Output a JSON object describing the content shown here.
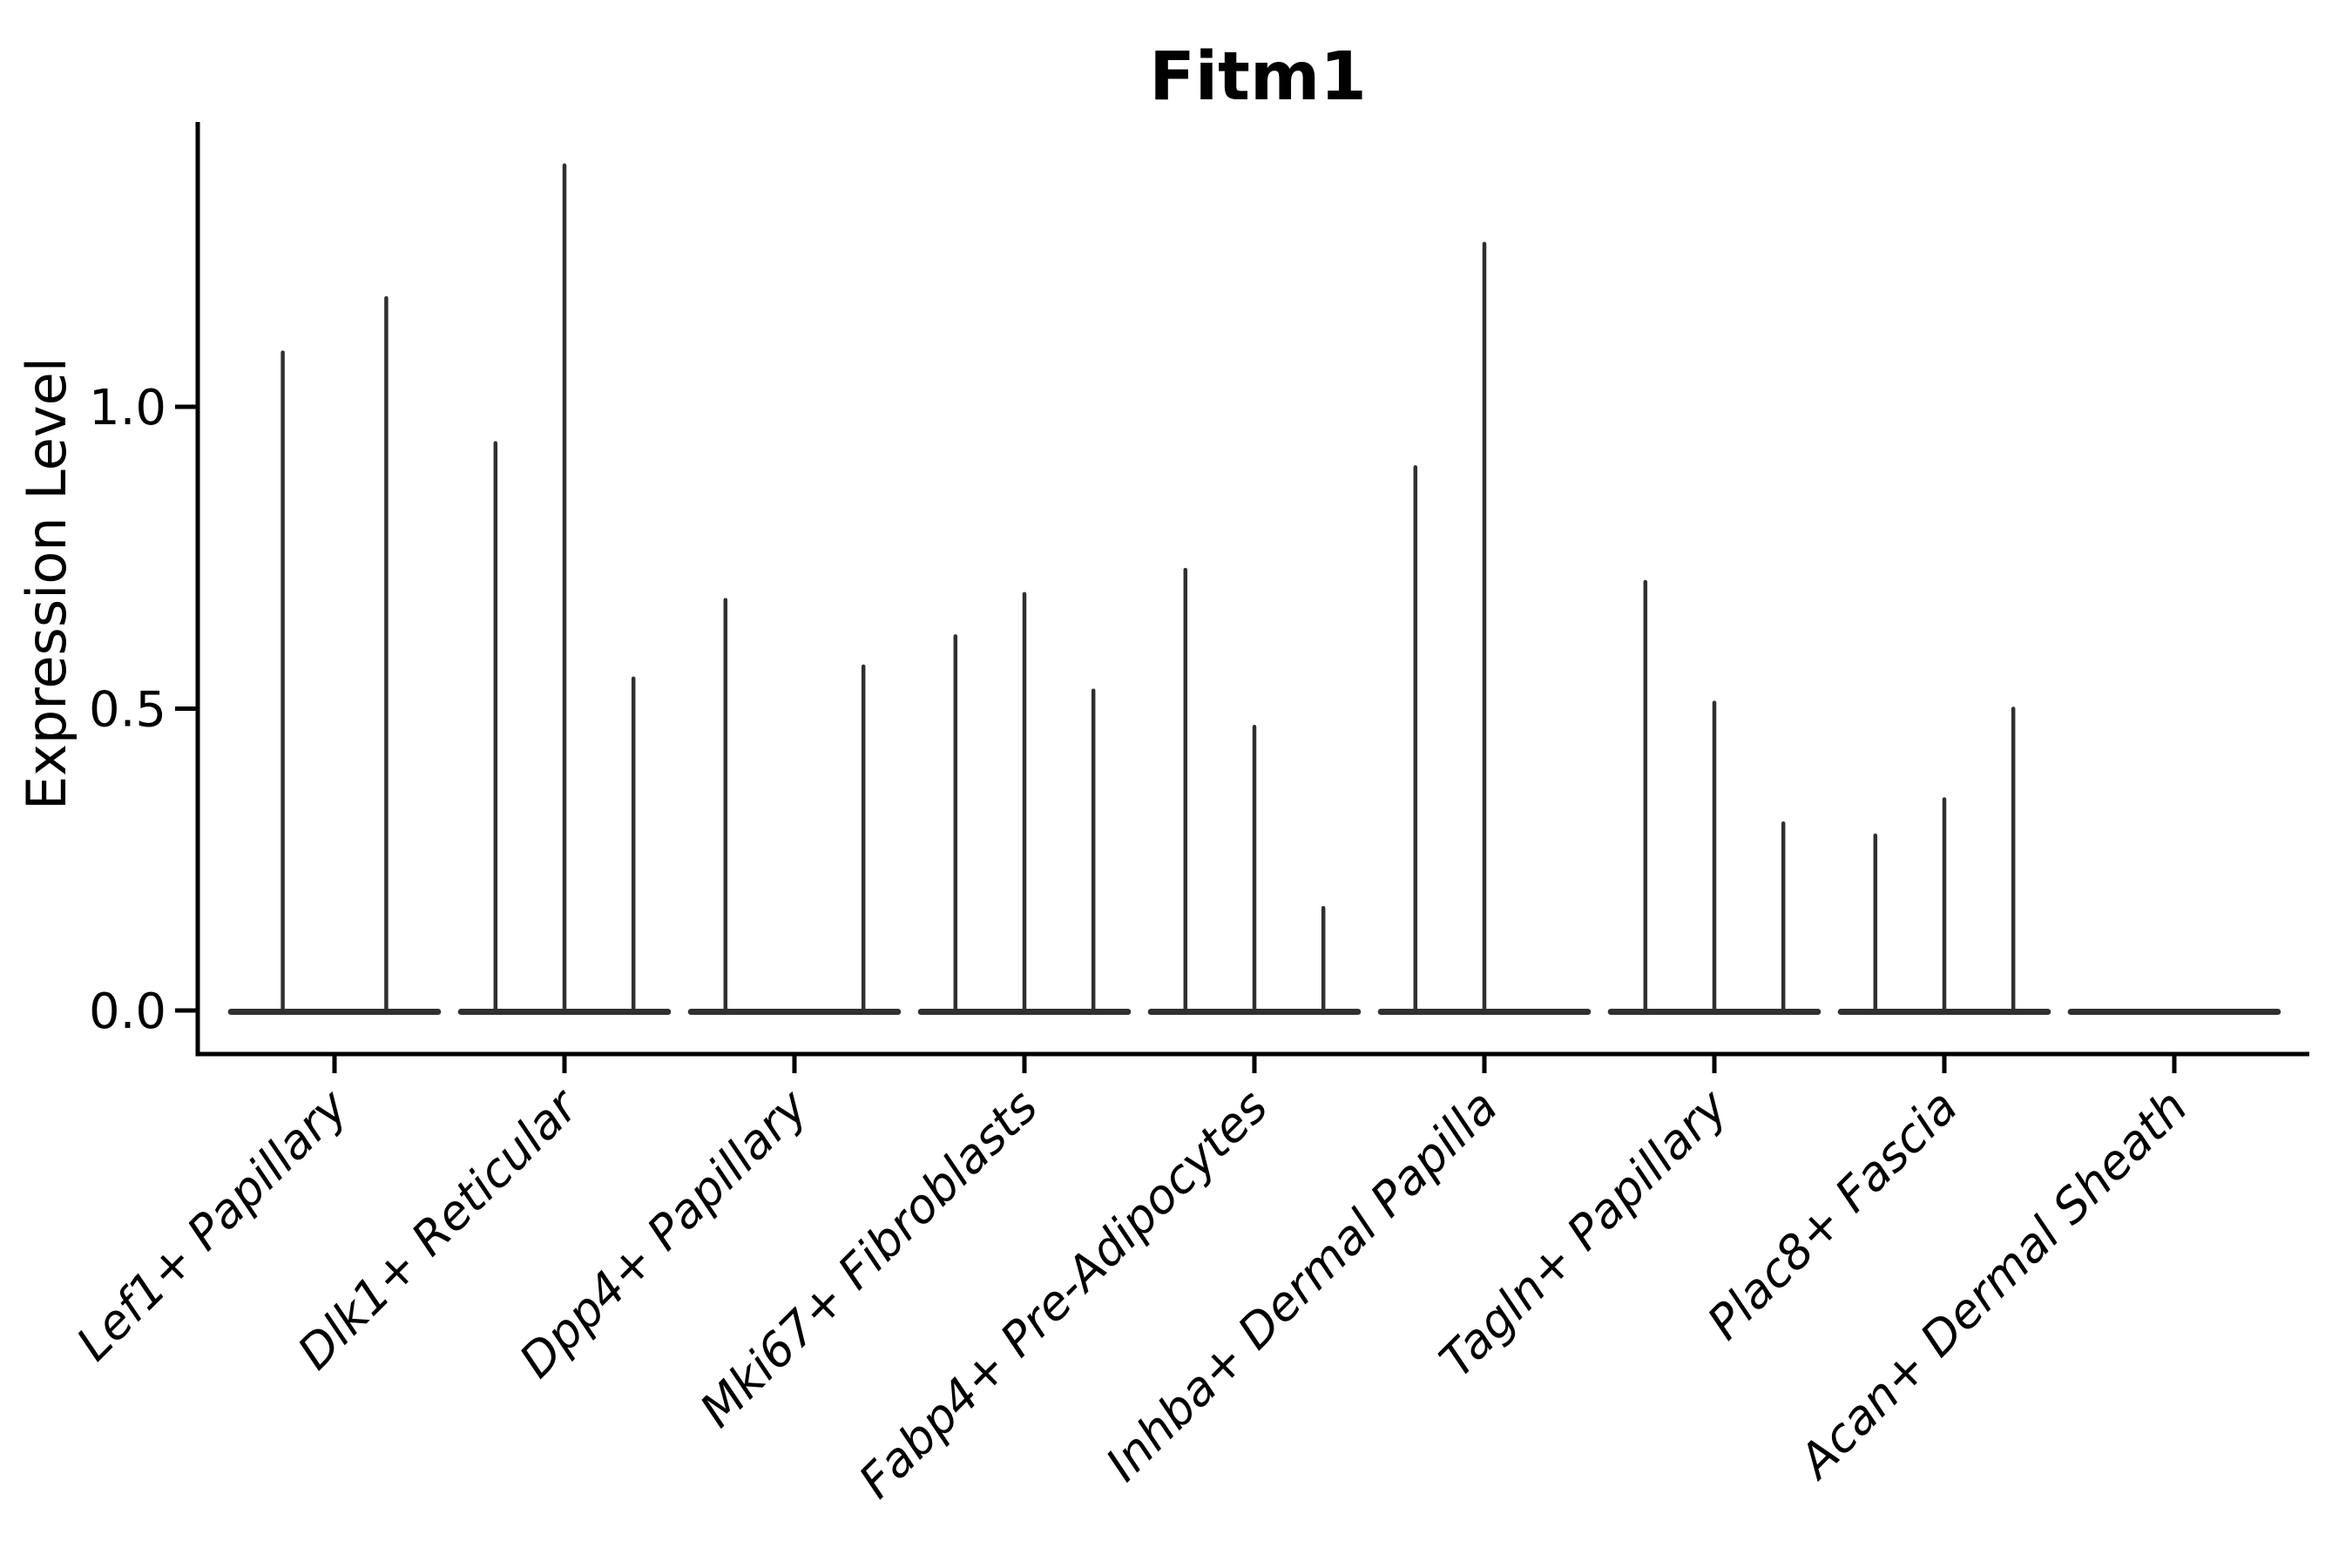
{
  "chart_data": {
    "type": "violin",
    "title": "Fitm1",
    "ylabel": "Expression Level",
    "xlabel": "",
    "grid": false,
    "legend": "none",
    "ylim": [
      -0.07,
      1.47
    ],
    "yticks": [
      {
        "value": 0.0,
        "label": "0.0"
      },
      {
        "value": 0.5,
        "label": "0.5"
      },
      {
        "value": 1.0,
        "label": "1.0"
      }
    ],
    "categories": [
      "Lef1+ Papillary",
      "Dlk1+ Reticular",
      "Dpp4+ Papillary",
      "Mki67+ Fibroblasts",
      "Fabp4+ Pre-Adipocytes",
      "Inhba+ Dermal Papilla",
      "Tagln+ Papillary",
      "Plac8+ Fascia",
      "Acan+ Dermal Sheath"
    ],
    "groups": [
      {
        "label": "Lef1+ Papillary",
        "violins": [
          {
            "offset": -0.225,
            "max": 1.09
          },
          {
            "offset": 0.225,
            "max": 1.18
          }
        ]
      },
      {
        "label": "Dlk1+ Reticular",
        "violins": [
          {
            "offset": -0.3,
            "max": 0.94
          },
          {
            "offset": 0.0,
            "max": 1.4
          },
          {
            "offset": 0.3,
            "max": 0.55
          }
        ]
      },
      {
        "label": "Dpp4+ Papillary",
        "violins": [
          {
            "offset": -0.3,
            "max": 0.68
          },
          {
            "offset": 0.3,
            "max": 0.57
          }
        ]
      },
      {
        "label": "Mki67+ Fibroblasts",
        "violins": [
          {
            "offset": -0.3,
            "max": 0.62
          },
          {
            "offset": 0.0,
            "max": 0.69
          },
          {
            "offset": 0.3,
            "max": 0.53
          }
        ]
      },
      {
        "label": "Fabp4+ Pre-Adipocytes",
        "violins": [
          {
            "offset": -0.3,
            "max": 0.73
          },
          {
            "offset": 0.0,
            "max": 0.47
          },
          {
            "offset": 0.3,
            "max": 0.17
          }
        ]
      },
      {
        "label": "Inhba+ Dermal Papilla",
        "violins": [
          {
            "offset": -0.3,
            "max": 0.9
          },
          {
            "offset": 0.0,
            "max": 1.27
          }
        ]
      },
      {
        "label": "Tagln+ Papillary",
        "violins": [
          {
            "offset": -0.3,
            "max": 0.71
          },
          {
            "offset": 0.0,
            "max": 0.51
          },
          {
            "offset": 0.3,
            "max": 0.31
          }
        ]
      },
      {
        "label": "Plac8+ Fascia",
        "violins": [
          {
            "offset": -0.3,
            "max": 0.29
          },
          {
            "offset": 0.0,
            "max": 0.35
          },
          {
            "offset": 0.3,
            "max": 0.5
          }
        ]
      },
      {
        "label": "Acan+ Dermal Sheath",
        "violins": []
      }
    ],
    "baseline_halfwidth": 0.45,
    "colors": {
      "violin": "#303030",
      "axis": "#000000",
      "background": "#ffffff"
    }
  }
}
